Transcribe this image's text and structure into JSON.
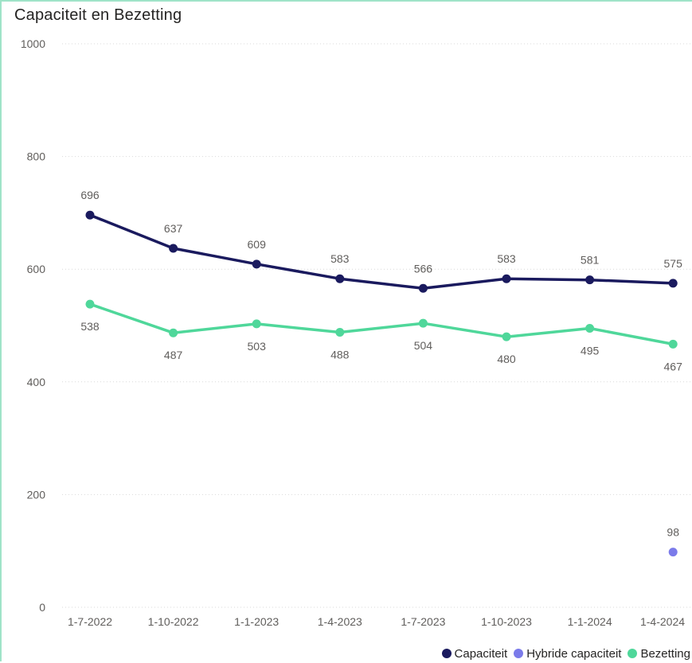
{
  "chart_data": {
    "type": "line",
    "title": "Capaciteit en Bezetting",
    "categories": [
      "1-7-2022",
      "1-10-2022",
      "1-1-2023",
      "1-4-2023",
      "1-7-2023",
      "1-10-2023",
      "1-1-2024",
      "1-4-2024"
    ],
    "y_ticks": [
      "0",
      "200",
      "400",
      "600",
      "800",
      "1000"
    ],
    "ylim": [
      0,
      1000
    ],
    "grid": "horizontal dotted",
    "legend_position": "bottom-right",
    "series": [
      {
        "name": "Capaciteit",
        "color": "#1a1a5e",
        "values": [
          696,
          637,
          609,
          583,
          566,
          583,
          581,
          575
        ],
        "labels": [
          "696",
          "637",
          "609",
          "583",
          "566",
          "583",
          "581",
          "575"
        ]
      },
      {
        "name": "Hybride capaciteit",
        "color": "#7b7bea",
        "values": [
          null,
          null,
          null,
          null,
          null,
          null,
          null,
          98
        ],
        "labels": [
          "",
          "",
          "",
          "",
          "",
          "",
          "",
          "98"
        ]
      },
      {
        "name": "Bezetting",
        "color": "#4fd79a",
        "values": [
          538,
          487,
          503,
          488,
          504,
          480,
          495,
          467
        ],
        "labels": [
          "538",
          "487",
          "503",
          "488",
          "504",
          "480",
          "495",
          "467"
        ]
      }
    ]
  }
}
